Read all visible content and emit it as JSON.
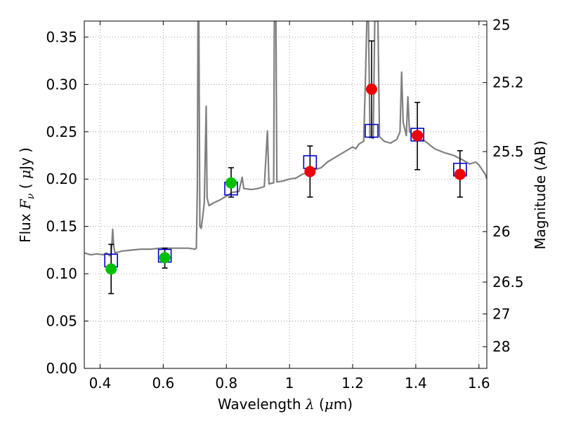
{
  "chart_data": {
    "type": "scatter",
    "xlim": [
      0.35,
      1.625
    ],
    "ylim": [
      0.0,
      0.367
    ],
    "grid": true,
    "x_ticks": [
      0.4,
      0.6,
      0.8,
      1.0,
      1.2,
      1.4,
      1.6
    ],
    "x_tick_labels": [
      "0.4",
      "0.6",
      "0.8",
      "1",
      "1.2",
      "1.4",
      "1.6"
    ],
    "y_ticks": [
      0.0,
      0.05,
      0.1,
      0.15,
      0.2,
      0.25,
      0.3,
      0.35
    ],
    "y_tick_labels": [
      "0.00",
      "0.05",
      "0.10",
      "0.15",
      "0.20",
      "0.25",
      "0.30",
      "0.35"
    ],
    "xlabel": {
      "prefix": "Wavelength  ",
      "symbol": "λ",
      "unit": " (",
      "mu": "μ",
      "unit_end": "m)"
    },
    "ylabel": {
      "prefix": "Flux  ",
      "symbol": "F",
      "sub": "ν",
      "unit_pre": "  ( ",
      "mu": "μ",
      "unit_end": "Jy )"
    },
    "right_axis": {
      "label": "Magnitude (AB)",
      "ticks": [
        25,
        25.2,
        25.5,
        26,
        26.5,
        27,
        28
      ],
      "tick_labels": [
        "25",
        "25.2",
        "25.5",
        "26",
        "26.5",
        "27",
        "28"
      ],
      "zero_point_uJy": 23.9
    },
    "colors": {
      "spectrum": "#808080",
      "model_box": "#0000cc",
      "green_points": "#00c000",
      "red_points": "#ee0000",
      "errorbar": "#000000",
      "grid": "#888888"
    },
    "series": [
      {
        "kind": "spectrum",
        "points": [
          [
            0.35,
            0.122
          ],
          [
            0.37,
            0.12
          ],
          [
            0.39,
            0.121
          ],
          [
            0.41,
            0.12
          ],
          [
            0.42,
            0.122
          ],
          [
            0.43,
            0.119
          ],
          [
            0.435,
            0.121
          ],
          [
            0.438,
            0.135
          ],
          [
            0.44,
            0.147
          ],
          [
            0.443,
            0.13
          ],
          [
            0.447,
            0.122
          ],
          [
            0.47,
            0.124
          ],
          [
            0.5,
            0.125
          ],
          [
            0.53,
            0.126
          ],
          [
            0.56,
            0.126
          ],
          [
            0.59,
            0.127
          ],
          [
            0.62,
            0.127
          ],
          [
            0.65,
            0.127
          ],
          [
            0.68,
            0.127
          ],
          [
            0.7,
            0.126
          ],
          [
            0.705,
            0.127
          ],
          [
            0.708,
            0.19
          ],
          [
            0.71,
            0.367
          ],
          [
            0.713,
            0.367
          ],
          [
            0.716,
            0.15
          ],
          [
            0.72,
            0.148
          ],
          [
            0.725,
            0.16
          ],
          [
            0.73,
            0.175
          ],
          [
            0.736,
            0.277
          ],
          [
            0.739,
            0.18
          ],
          [
            0.745,
            0.172
          ],
          [
            0.76,
            0.175
          ],
          [
            0.78,
            0.178
          ],
          [
            0.8,
            0.182
          ],
          [
            0.82,
            0.186
          ],
          [
            0.84,
            0.187
          ],
          [
            0.85,
            0.202
          ],
          [
            0.855,
            0.19
          ],
          [
            0.88,
            0.189
          ],
          [
            0.9,
            0.19
          ],
          [
            0.92,
            0.192
          ],
          [
            0.93,
            0.251
          ],
          [
            0.935,
            0.195
          ],
          [
            0.95,
            0.196
          ],
          [
            0.952,
            0.367
          ],
          [
            0.957,
            0.367
          ],
          [
            0.96,
            0.197
          ],
          [
            0.98,
            0.198
          ],
          [
            1.0,
            0.2
          ],
          [
            1.02,
            0.201
          ],
          [
            1.04,
            0.205
          ],
          [
            1.06,
            0.207
          ],
          [
            1.08,
            0.21
          ],
          [
            1.1,
            0.212
          ],
          [
            1.12,
            0.218
          ],
          [
            1.14,
            0.222
          ],
          [
            1.16,
            0.226
          ],
          [
            1.18,
            0.23
          ],
          [
            1.2,
            0.234
          ],
          [
            1.21,
            0.232
          ],
          [
            1.22,
            0.237
          ],
          [
            1.235,
            0.24
          ],
          [
            1.24,
            0.3
          ],
          [
            1.245,
            0.367
          ],
          [
            1.25,
            0.367
          ],
          [
            1.255,
            0.245
          ],
          [
            1.265,
            0.243
          ],
          [
            1.27,
            0.367
          ],
          [
            1.28,
            0.367
          ],
          [
            1.285,
            0.245
          ],
          [
            1.3,
            0.24
          ],
          [
            1.32,
            0.238
          ],
          [
            1.34,
            0.242
          ],
          [
            1.35,
            0.25
          ],
          [
            1.355,
            0.313
          ],
          [
            1.36,
            0.26
          ],
          [
            1.37,
            0.246
          ],
          [
            1.375,
            0.287
          ],
          [
            1.38,
            0.25
          ],
          [
            1.4,
            0.245
          ],
          [
            1.43,
            0.24
          ],
          [
            1.46,
            0.232
          ],
          [
            1.49,
            0.228
          ],
          [
            1.52,
            0.225
          ],
          [
            1.55,
            0.22
          ],
          [
            1.57,
            0.216
          ],
          [
            1.59,
            0.218
          ],
          [
            1.6,
            0.215
          ],
          [
            1.61,
            0.21
          ],
          [
            1.62,
            0.205
          ],
          [
            1.625,
            0.2
          ]
        ]
      },
      {
        "kind": "model_boxes",
        "points": [
          [
            0.435,
            0.114
          ],
          [
            0.605,
            0.119
          ],
          [
            0.815,
            0.19
          ],
          [
            1.065,
            0.218
          ],
          [
            1.26,
            0.251
          ],
          [
            1.405,
            0.247
          ],
          [
            1.54,
            0.21
          ]
        ]
      },
      {
        "kind": "observed",
        "marker_color": "green",
        "points": [
          {
            "x": 0.435,
            "y": 0.105,
            "err_lo": 0.079,
            "err_hi": 0.131
          },
          {
            "x": 0.605,
            "y": 0.117,
            "err_lo": 0.106,
            "err_hi": 0.127
          },
          {
            "x": 0.815,
            "y": 0.196,
            "err_lo": 0.181,
            "err_hi": 0.212
          }
        ]
      },
      {
        "kind": "observed",
        "marker_color": "red",
        "points": [
          {
            "x": 1.065,
            "y": 0.208,
            "err_lo": 0.181,
            "err_hi": 0.235
          },
          {
            "x": 1.26,
            "y": 0.295,
            "err_lo": 0.244,
            "err_hi": 0.346
          },
          {
            "x": 1.405,
            "y": 0.246,
            "err_lo": 0.21,
            "err_hi": 0.281
          },
          {
            "x": 1.54,
            "y": 0.205,
            "err_lo": 0.181,
            "err_hi": 0.23
          }
        ]
      }
    ]
  }
}
